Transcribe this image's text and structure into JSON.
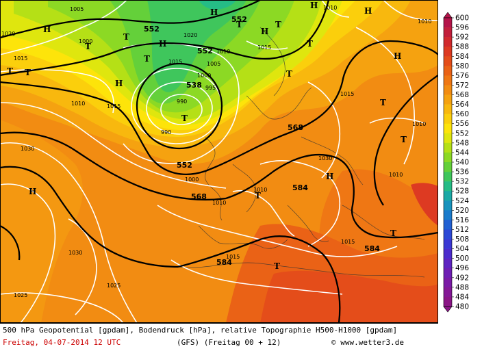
{
  "caption": {
    "line1": "500 hPa Geopotential [gpdam], Bodendruck [hPa], relative Topographie H500-H1000 [gpdam]",
    "date": "Freitag, 04-07-2014  12 UTC",
    "model": "(GFS)  (Freitag 00 + 12)",
    "credit": "© www.wetter3.de"
  },
  "scale": {
    "labels": [
      "600",
      "596",
      "592",
      "588",
      "584",
      "580",
      "576",
      "572",
      "568",
      "564",
      "560",
      "556",
      "552",
      "548",
      "544",
      "540",
      "536",
      "532",
      "528",
      "524",
      "520",
      "516",
      "512",
      "508",
      "504",
      "500",
      "496",
      "492",
      "488",
      "484",
      "480"
    ],
    "colors": [
      "#b4144a",
      "#c21f3c",
      "#d12a2e",
      "#dd3a22",
      "#e44d1a",
      "#ea6216",
      "#ef7714",
      "#f28c12",
      "#f5a210",
      "#f8b80e",
      "#fbcf0c",
      "#fde40a",
      "#dfe60e",
      "#b5e016",
      "#8cd924",
      "#64d03a",
      "#3fc65c",
      "#25bc86",
      "#1aa9a6",
      "#1893bd",
      "#1a7bcc",
      "#2160d3",
      "#2c48d6",
      "#3b38d4",
      "#4c2ccd",
      "#5e24c2",
      "#6e1eb4",
      "#7a1aa6",
      "#841896",
      "#8a1686"
    ]
  },
  "map": {
    "highs": [
      "H",
      "H",
      "H",
      "H",
      "H",
      "H",
      "H",
      "H",
      "H",
      "H"
    ],
    "lows": [
      "T",
      "T",
      "T",
      "T",
      "T",
      "T",
      "T",
      "T",
      "T",
      "T",
      "T",
      "T",
      "T",
      "T",
      "T"
    ],
    "gpdam_labels": [
      "552",
      "552",
      "552",
      "538",
      "552",
      "568",
      "568",
      "584",
      "584",
      "584"
    ],
    "isobar_labels": [
      "1005",
      "1000",
      "1020",
      "1015",
      "1020",
      "1010",
      "1015",
      "1010",
      "1015",
      "1010",
      "1005",
      "1000",
      "995",
      "990",
      "990",
      "1030",
      "1000",
      "1010",
      "1010",
      "1030",
      "1010",
      "1015",
      "1030",
      "1025",
      "1025",
      "1015",
      "1010",
      "1010",
      "1015",
      "1015"
    ]
  }
}
